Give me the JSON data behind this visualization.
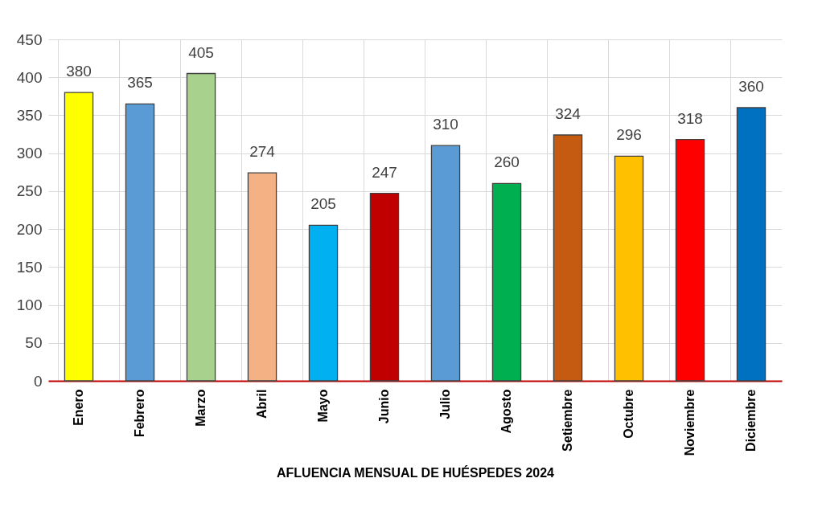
{
  "chart_data": {
    "type": "bar",
    "xlabel": "AFLUENCIA MENSUAL DE HUÉSPEDES 2024",
    "categories": [
      "Enero",
      "Febrero",
      "Marzo",
      "Abril",
      "Mayo",
      "Junio",
      "Julio",
      "Agosto",
      "Setiembre",
      "Octubre",
      "Noviembre",
      "Diciembre"
    ],
    "values": [
      380,
      365,
      405,
      274,
      205,
      247,
      310,
      260,
      324,
      296,
      318,
      360
    ],
    "colors": [
      "#ffff00",
      "#5b9bd5",
      "#a9d18e",
      "#f4b183",
      "#00b0f0",
      "#c00000",
      "#5b9bd5",
      "#00b050",
      "#c55a11",
      "#ffc000",
      "#ff0000",
      "#0070c0"
    ],
    "ylim": [
      0,
      450
    ],
    "yticks": [
      0,
      50,
      100,
      150,
      200,
      250,
      300,
      350,
      400,
      450
    ],
    "grid": true,
    "data_labels": true
  }
}
